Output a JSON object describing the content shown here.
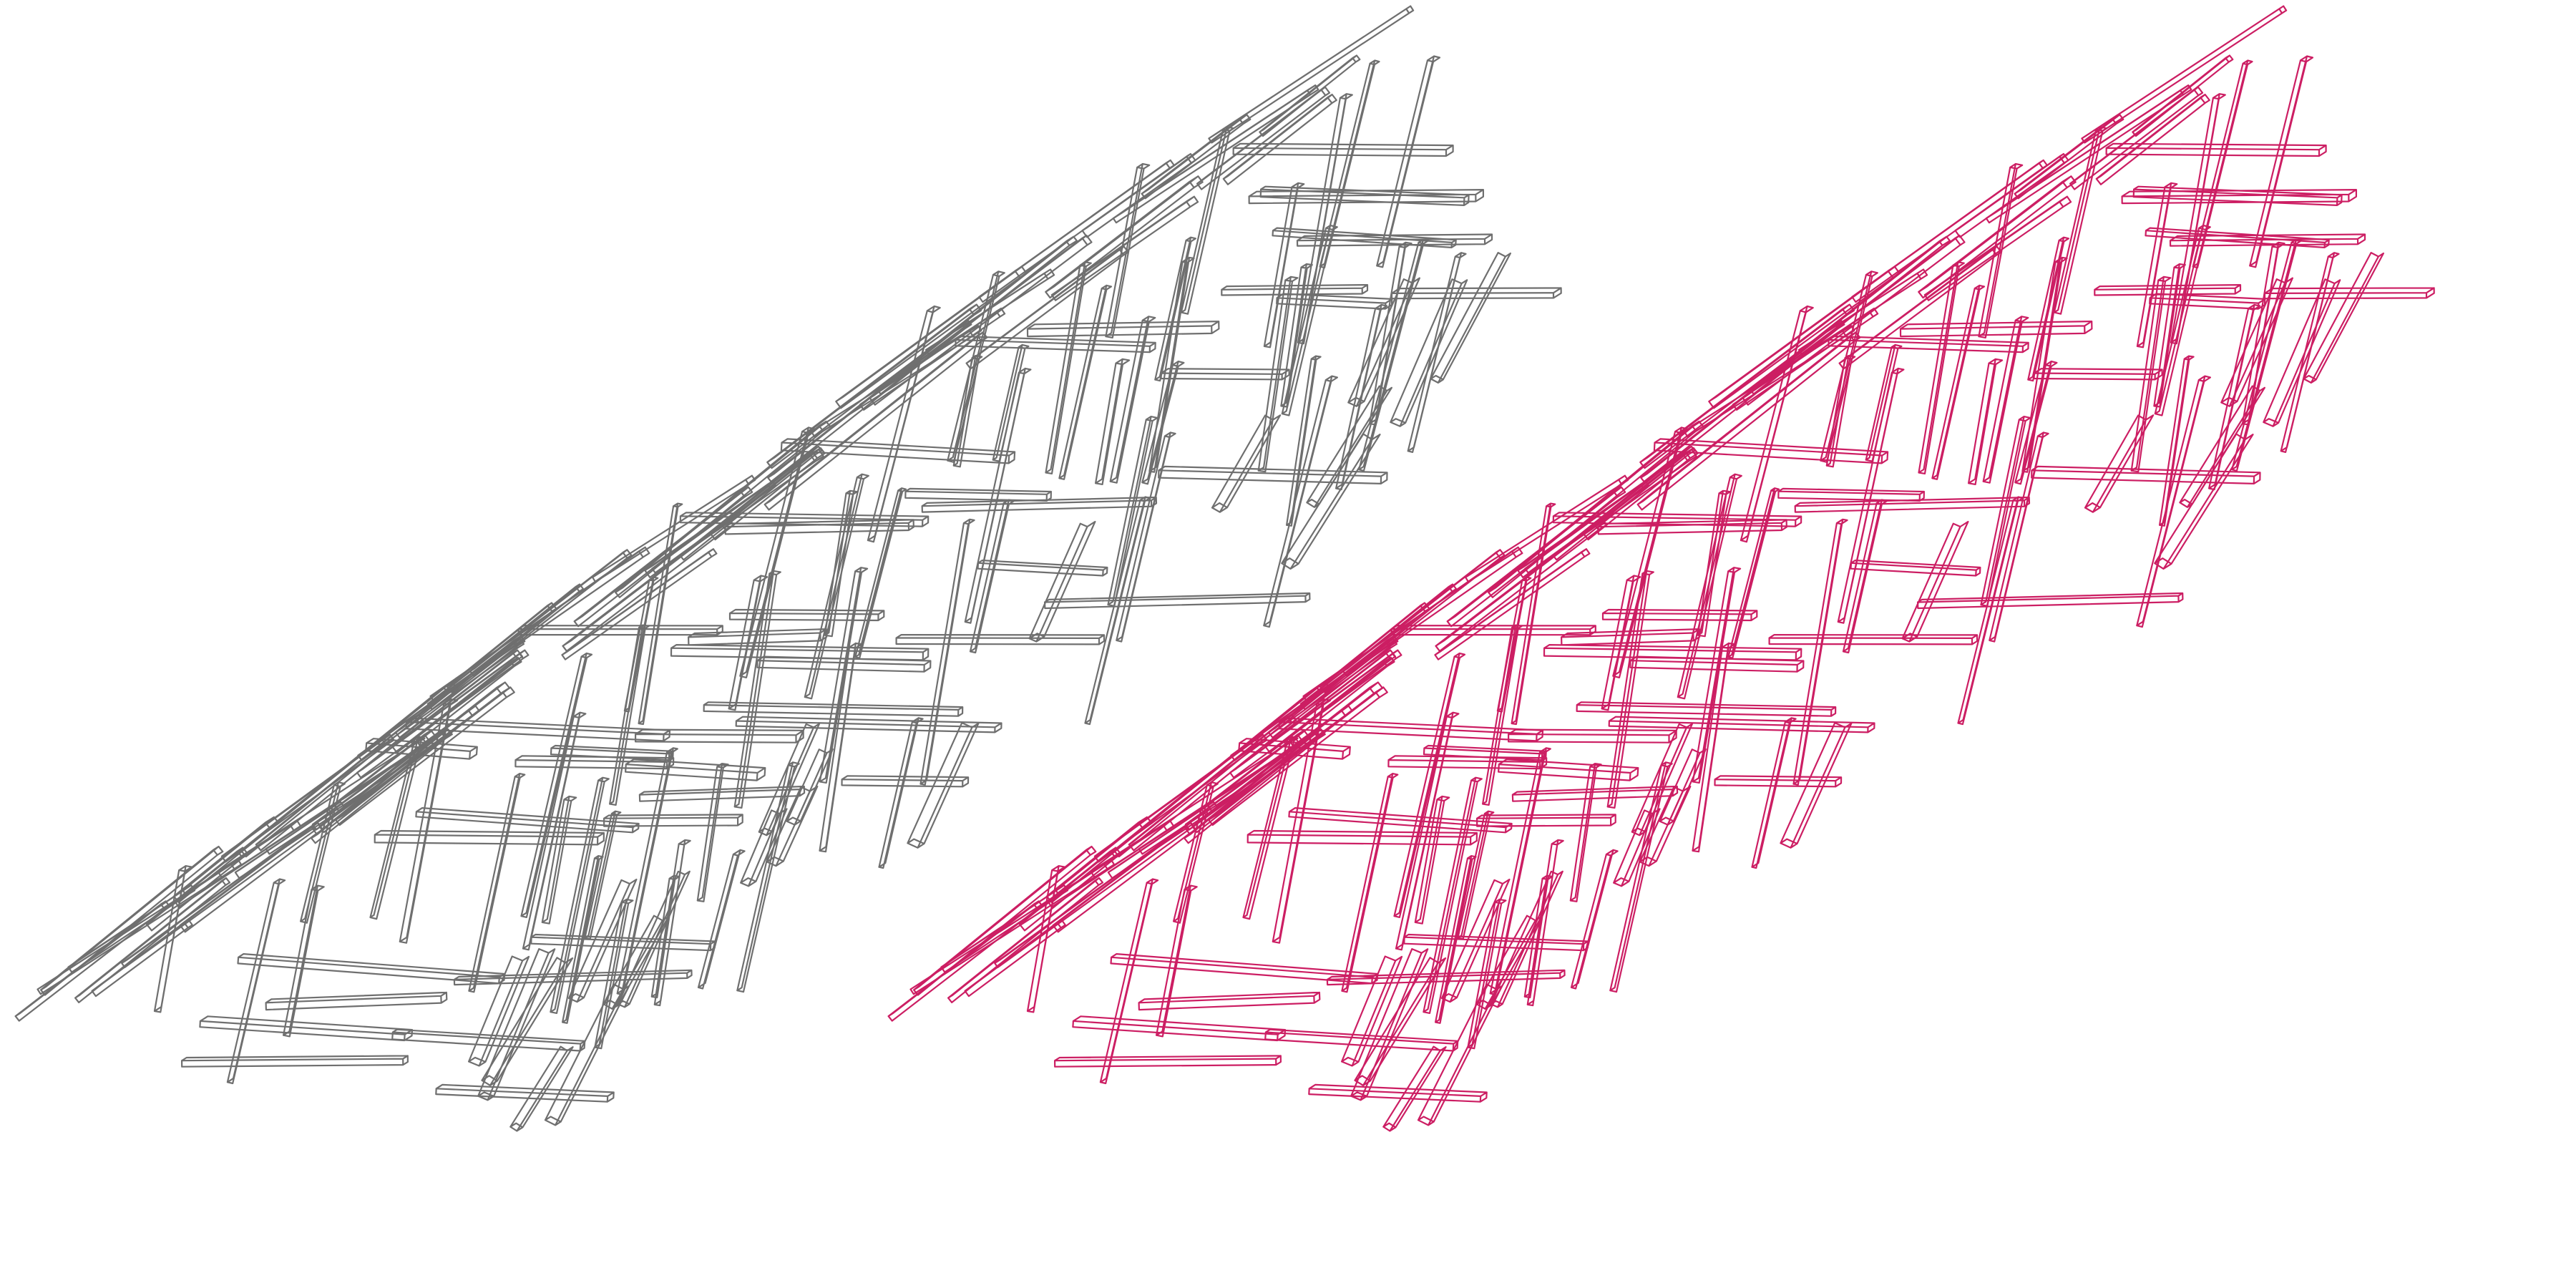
{
  "figure": {
    "panels": [
      {
        "id": "grey",
        "stroke": "#6f6f6f"
      },
      {
        "id": "magenta",
        "stroke": "#cc1e63"
      }
    ],
    "background": "#ffffff"
  }
}
